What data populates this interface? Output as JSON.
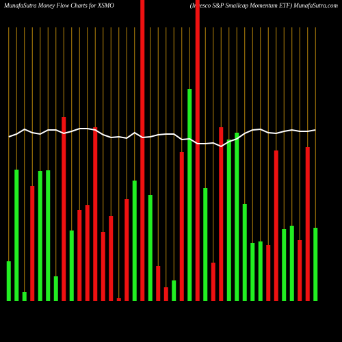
{
  "chart_data": {
    "type": "bar",
    "title": "MunafaSutra  Money Flow  Charts for XSMO",
    "subtitle": "(Invesco S&P Smallcap Momentum ETF) MunafaSutra.com",
    "ylim": [
      0,
      440
    ],
    "values": [
      58,
      192,
      13,
      168,
      190,
      191,
      36,
      269,
      103,
      133,
      140,
      254,
      101,
      124,
      4,
      149,
      176,
      440,
      155,
      51,
      20,
      30,
      218,
      310,
      440,
      165,
      56,
      254,
      236,
      246,
      142,
      85,
      87,
      82,
      220,
      105,
      110,
      89,
      225,
      107
    ],
    "colors": [
      "#22ee22",
      "#22ee22",
      "#22ee22",
      "#ee1111",
      "#22ee22",
      "#22ee22",
      "#22ee22",
      "#ee1111",
      "#22ee22",
      "#ee1111",
      "#ee1111",
      "#ee1111",
      "#ee1111",
      "#ee1111",
      "#ee1111",
      "#ee1111",
      "#22ee22",
      "#ee1111",
      "#22ee22",
      "#ee1111",
      "#ee1111",
      "#22ee22",
      "#ee1111",
      "#22ee22",
      "#ee1111",
      "#22ee22",
      "#ee1111",
      "#ee1111",
      "#22ee22",
      "#22ee22",
      "#22ee22",
      "#22ee22",
      "#22ee22",
      "#ee1111",
      "#ee1111",
      "#22ee22",
      "#22ee22",
      "#ee1111",
      "#ee1111",
      "#22ee22"
    ],
    "line_values": [
      240,
      244,
      251,
      246,
      244,
      250,
      250,
      245,
      248,
      252,
      252,
      250,
      243,
      239,
      240,
      238,
      246,
      239,
      240,
      243,
      244,
      244,
      236,
      237,
      230,
      230,
      231,
      226,
      233,
      237,
      245,
      250,
      251,
      246,
      245,
      248,
      250,
      248,
      248,
      250
    ],
    "line_color": "#ffffff",
    "grid_color": "#b8860b"
  }
}
